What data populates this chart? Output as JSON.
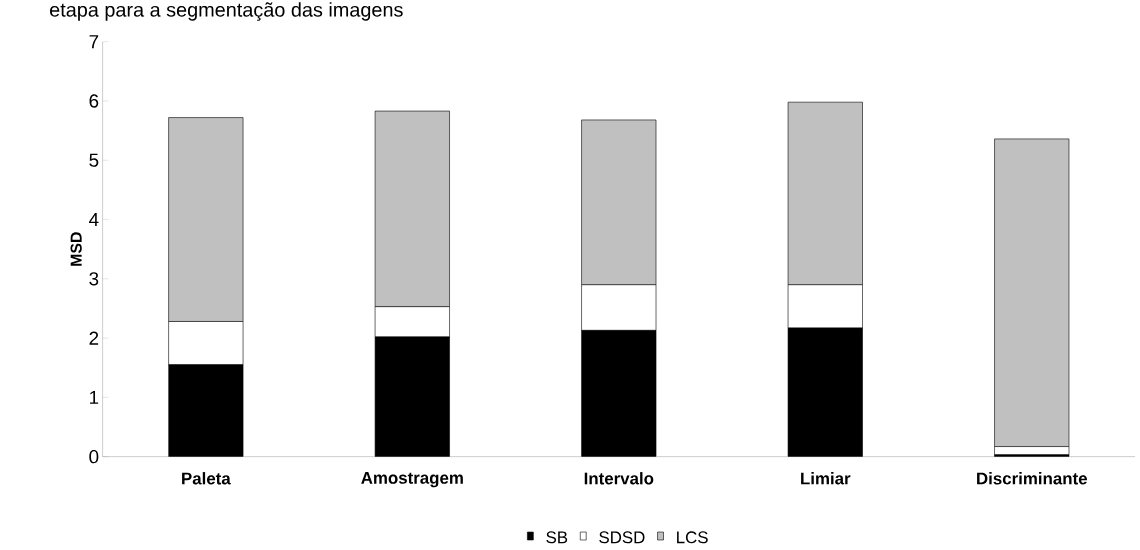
{
  "chart_data": {
    "type": "bar",
    "stacked": true,
    "title": "etapa para a segmentação das imagens",
    "ylabel": "MSD",
    "categories": [
      "Paleta",
      "Amostragem",
      "Intervalo",
      "Limiar",
      "Discriminante"
    ],
    "series": [
      {
        "name": "SB",
        "color": "#000000",
        "values": [
          1.55,
          2.02,
          2.13,
          2.17,
          0.03
        ]
      },
      {
        "name": "SDSD",
        "color": "#ffffff",
        "values": [
          0.73,
          0.51,
          0.77,
          0.73,
          0.14
        ]
      },
      {
        "name": "LCS",
        "color": "#c0c0c0",
        "values": [
          3.44,
          3.3,
          2.78,
          3.08,
          5.19
        ]
      }
    ],
    "ylim": [
      0,
      7
    ],
    "yticks": [
      0,
      1,
      2,
      3,
      4,
      5,
      6,
      7
    ],
    "grid": false,
    "legend": "bottom"
  }
}
